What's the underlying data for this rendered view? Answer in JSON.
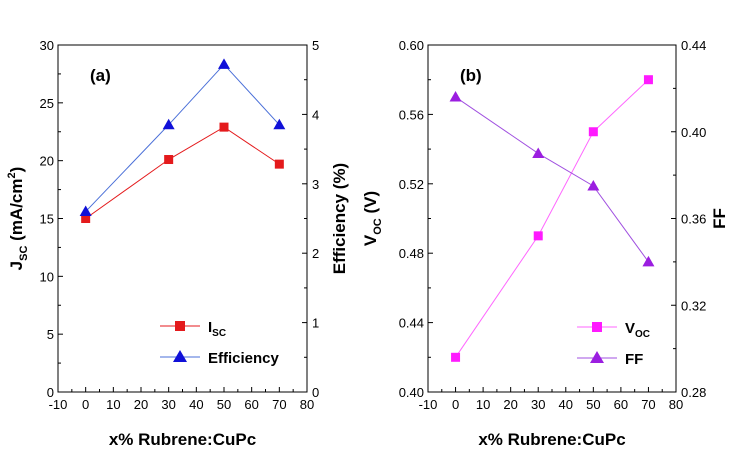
{
  "chart_data": [
    {
      "type": "line",
      "panel_label": "(a)",
      "x": [
        0,
        30,
        50,
        70
      ],
      "xlabel": "x% Rubrene:CuPc",
      "xlim": [
        -10,
        80
      ],
      "xticks": [
        -10,
        0,
        10,
        20,
        30,
        40,
        50,
        60,
        70,
        80
      ],
      "ylabel_left": {
        "main": "J",
        "sub": "SC",
        "rest": " (mA/cm",
        "sup": "2",
        "close": ")"
      },
      "ylim_left": [
        0,
        30
      ],
      "yticks_left": [
        0,
        5,
        10,
        15,
        20,
        25,
        30
      ],
      "ylabel_right": "Efficiency (%)",
      "ylim_right": [
        0,
        5
      ],
      "yticks_right": [
        0,
        1,
        2,
        3,
        4,
        5
      ],
      "legend_position": "bottom-right",
      "series": [
        {
          "name": "I",
          "name_sub": "SC",
          "axis": "left",
          "marker": "square",
          "color": "#e41a1c",
          "line_color": "#e41a1c",
          "values": [
            15.0,
            20.1,
            22.9,
            19.7
          ]
        },
        {
          "name": "Efficiency",
          "name_sub": "",
          "axis": "right",
          "marker": "triangle",
          "color": "#1010d8",
          "line_color": "#4a6fd8",
          "values": [
            2.6,
            3.85,
            4.72,
            3.85
          ]
        }
      ]
    },
    {
      "type": "line",
      "panel_label": "(b)",
      "x": [
        0,
        30,
        50,
        70
      ],
      "xlabel": "x% Rubrene:CuPc",
      "xlim": [
        -10,
        80
      ],
      "xticks": [
        -10,
        0,
        10,
        20,
        30,
        40,
        50,
        60,
        70,
        80
      ],
      "ylabel_left": {
        "main": "V",
        "sub": "OC",
        "rest": " (V)",
        "sup": "",
        "close": ""
      },
      "ylim_left": [
        0.4,
        0.6
      ],
      "yticks_left": [
        "0.40",
        "0.44",
        "0.48",
        "0.52",
        "0.56",
        "0.60"
      ],
      "ylabel_right": "FF",
      "ylim_right": [
        0.28,
        0.44
      ],
      "yticks_right": [
        "0.28",
        "0.32",
        "0.36",
        "0.40",
        "0.44"
      ],
      "legend_position": "bottom-right",
      "series": [
        {
          "name": "V",
          "name_sub": "OC",
          "axis": "left",
          "marker": "square",
          "color": "#ff1aff",
          "line_color": "#ff66ff",
          "values": [
            0.42,
            0.49,
            0.55,
            0.58
          ]
        },
        {
          "name": "FF",
          "name_sub": "",
          "axis": "right",
          "marker": "triangle",
          "color": "#9b1ee0",
          "line_color": "#a050e0",
          "values": [
            0.416,
            0.39,
            0.375,
            0.34
          ]
        }
      ]
    }
  ]
}
